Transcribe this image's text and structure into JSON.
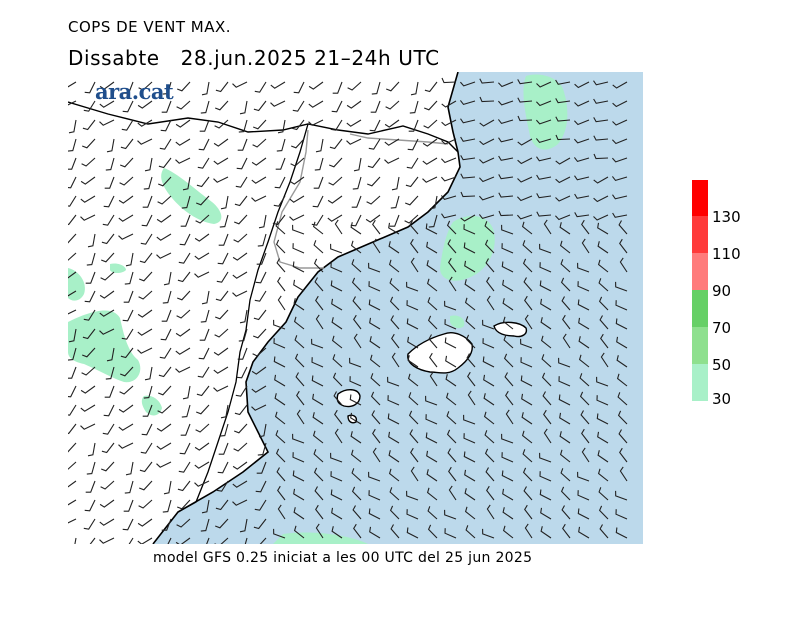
{
  "header": {
    "title": "COPS DE VENT MAX.",
    "subtitle": "Dissabte   28.jun.2025 21–24h UTC"
  },
  "logo": {
    "text": "ara.cat",
    "color": "#1f4e8c"
  },
  "footer": {
    "text": "model GFS 0.25 iniciat a les 00 UTC del 25 jun 2025"
  },
  "map": {
    "sea_color": "#bcd9eb",
    "land_color": "#ffffff",
    "wind_zone_color": "#a8f0c8",
    "barb_color": "#222222",
    "icon": "wind-barbs-map"
  },
  "legend": {
    "items": [
      {
        "label": "",
        "color": "#ff0000"
      },
      {
        "label": "130",
        "color": "#ff3a3a"
      },
      {
        "label": "110",
        "color": "#ff7b7b"
      },
      {
        "label": "90",
        "color": "#66d066"
      },
      {
        "label": "70",
        "color": "#8ee08e"
      },
      {
        "label": "50",
        "color": "#a8f0c8"
      },
      {
        "label": "30",
        "color": ""
      }
    ]
  }
}
